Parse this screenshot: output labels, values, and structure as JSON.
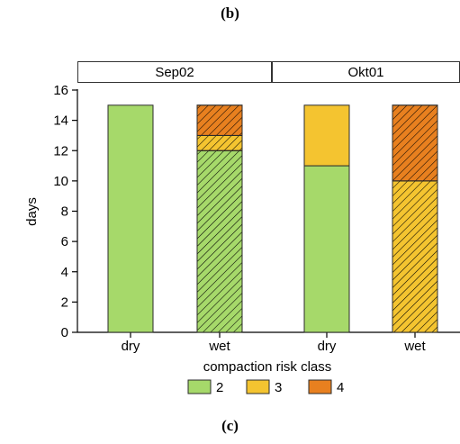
{
  "captions": {
    "top": "(b)",
    "bottom": "(c)"
  },
  "chart_data": {
    "type": "bar",
    "stacked": true,
    "xlabel": "compaction risk class",
    "ylabel": "days",
    "ylim": [
      0,
      16
    ],
    "yticks": [
      0,
      2,
      4,
      6,
      8,
      10,
      12,
      14,
      16
    ],
    "grid": false,
    "legend_position": "bottom",
    "legend": [
      {
        "label": "2",
        "color": "#a6d96a"
      },
      {
        "label": "3",
        "color": "#f4c430"
      },
      {
        "label": "4",
        "color": "#e8801f"
      }
    ],
    "panels": [
      {
        "title": "Sep02",
        "categories": [
          "dry",
          "wet"
        ],
        "hatched": [
          false,
          true
        ],
        "series": [
          {
            "name": "2",
            "values": [
              15,
              12
            ]
          },
          {
            "name": "3",
            "values": [
              0,
              1
            ]
          },
          {
            "name": "4",
            "values": [
              0,
              2
            ]
          }
        ]
      },
      {
        "title": "Okt01",
        "categories": [
          "dry",
          "wet"
        ],
        "hatched": [
          false,
          true
        ],
        "series": [
          {
            "name": "2",
            "values": [
              11,
              0
            ]
          },
          {
            "name": "3",
            "values": [
              4,
              10
            ]
          },
          {
            "name": "4",
            "values": [
              0,
              5
            ]
          }
        ]
      }
    ]
  }
}
